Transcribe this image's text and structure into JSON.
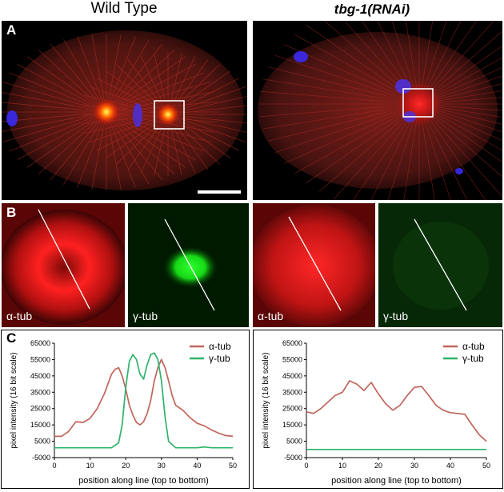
{
  "titles": {
    "left": "Wild Type",
    "right": "tbg-1(RNAi)"
  },
  "panel_letters": {
    "a": "A",
    "b": "B",
    "c": "C"
  },
  "micro_labels": {
    "alpha": "α-tub",
    "gamma": "γ-tub"
  },
  "colors": {
    "alpha": "#c0655a",
    "gamma": "#2db36b"
  },
  "chart_data": [
    {
      "type": "line",
      "ylabel": "pixel intensity (16 bit scale)",
      "xlabel": "position along line (top to bottom)",
      "xlim": [
        0,
        50
      ],
      "ylim": [
        -5000,
        65000
      ],
      "xticks": [
        "0",
        "10",
        "20",
        "30",
        "40",
        "50"
      ],
      "yticks": [
        "65000",
        "55000",
        "45000",
        "35000",
        "25000",
        "15000",
        "5000",
        "-5000"
      ],
      "legend": "top-right",
      "series": [
        {
          "name": "α-tub",
          "x": [
            0,
            2,
            4,
            6,
            8,
            10,
            12,
            14,
            16,
            17,
            18,
            19,
            20,
            21,
            22,
            23,
            24,
            25,
            26,
            27,
            28,
            29,
            30,
            31,
            32,
            33,
            34,
            36,
            38,
            40,
            42,
            44,
            46,
            48,
            50
          ],
          "y": [
            8000,
            8000,
            11000,
            17000,
            16500,
            19000,
            25000,
            34000,
            46000,
            49000,
            50000,
            45000,
            37000,
            27000,
            21000,
            16500,
            15000,
            17000,
            22000,
            30000,
            42000,
            50000,
            55000,
            50000,
            42000,
            33000,
            27000,
            24000,
            19500,
            16000,
            14500,
            12000,
            10000,
            8500,
            8000
          ]
        },
        {
          "name": "γ-tub",
          "x": [
            0,
            2,
            4,
            6,
            8,
            10,
            12,
            14,
            16,
            18,
            19,
            20,
            21,
            22,
            23,
            24,
            25,
            26,
            27,
            28,
            29,
            30,
            31,
            32,
            34,
            36,
            38,
            40,
            42,
            44,
            46,
            48,
            50
          ],
          "y": [
            1000,
            1000,
            1000,
            1000,
            1000,
            1000,
            1000,
            1000,
            1000,
            4000,
            15000,
            38000,
            54000,
            58000,
            55000,
            46000,
            43000,
            52000,
            58000,
            59000,
            55000,
            42000,
            20000,
            5000,
            1000,
            1000,
            1000,
            1000,
            1500,
            1000,
            1000,
            1000,
            1000
          ]
        }
      ]
    },
    {
      "type": "line",
      "ylabel": "pixel intensity (16 bit scale)",
      "xlabel": "position along line (top to bottom)",
      "xlim": [
        0,
        50
      ],
      "ylim": [
        -5000,
        65000
      ],
      "xticks": [
        "0",
        "10",
        "20",
        "30",
        "40",
        "50"
      ],
      "yticks": [
        "65000",
        "55000",
        "45000",
        "35000",
        "25000",
        "15000",
        "5000",
        "-5000"
      ],
      "legend": "top-right",
      "series": [
        {
          "name": "α-tub",
          "x": [
            0,
            2,
            4,
            6,
            8,
            10,
            12,
            14,
            16,
            18,
            20,
            22,
            24,
            26,
            28,
            30,
            32,
            34,
            36,
            38,
            40,
            42,
            44,
            46,
            48,
            50
          ],
          "y": [
            23000,
            22000,
            25000,
            29000,
            33000,
            35000,
            42000,
            40000,
            36000,
            41000,
            34000,
            28000,
            24000,
            27000,
            33000,
            38000,
            38500,
            33000,
            27000,
            24000,
            22500,
            22000,
            21500,
            15000,
            9000,
            5000
          ]
        },
        {
          "name": "γ-tub",
          "x": [
            0,
            50
          ],
          "y": [
            0,
            0
          ]
        }
      ]
    }
  ]
}
